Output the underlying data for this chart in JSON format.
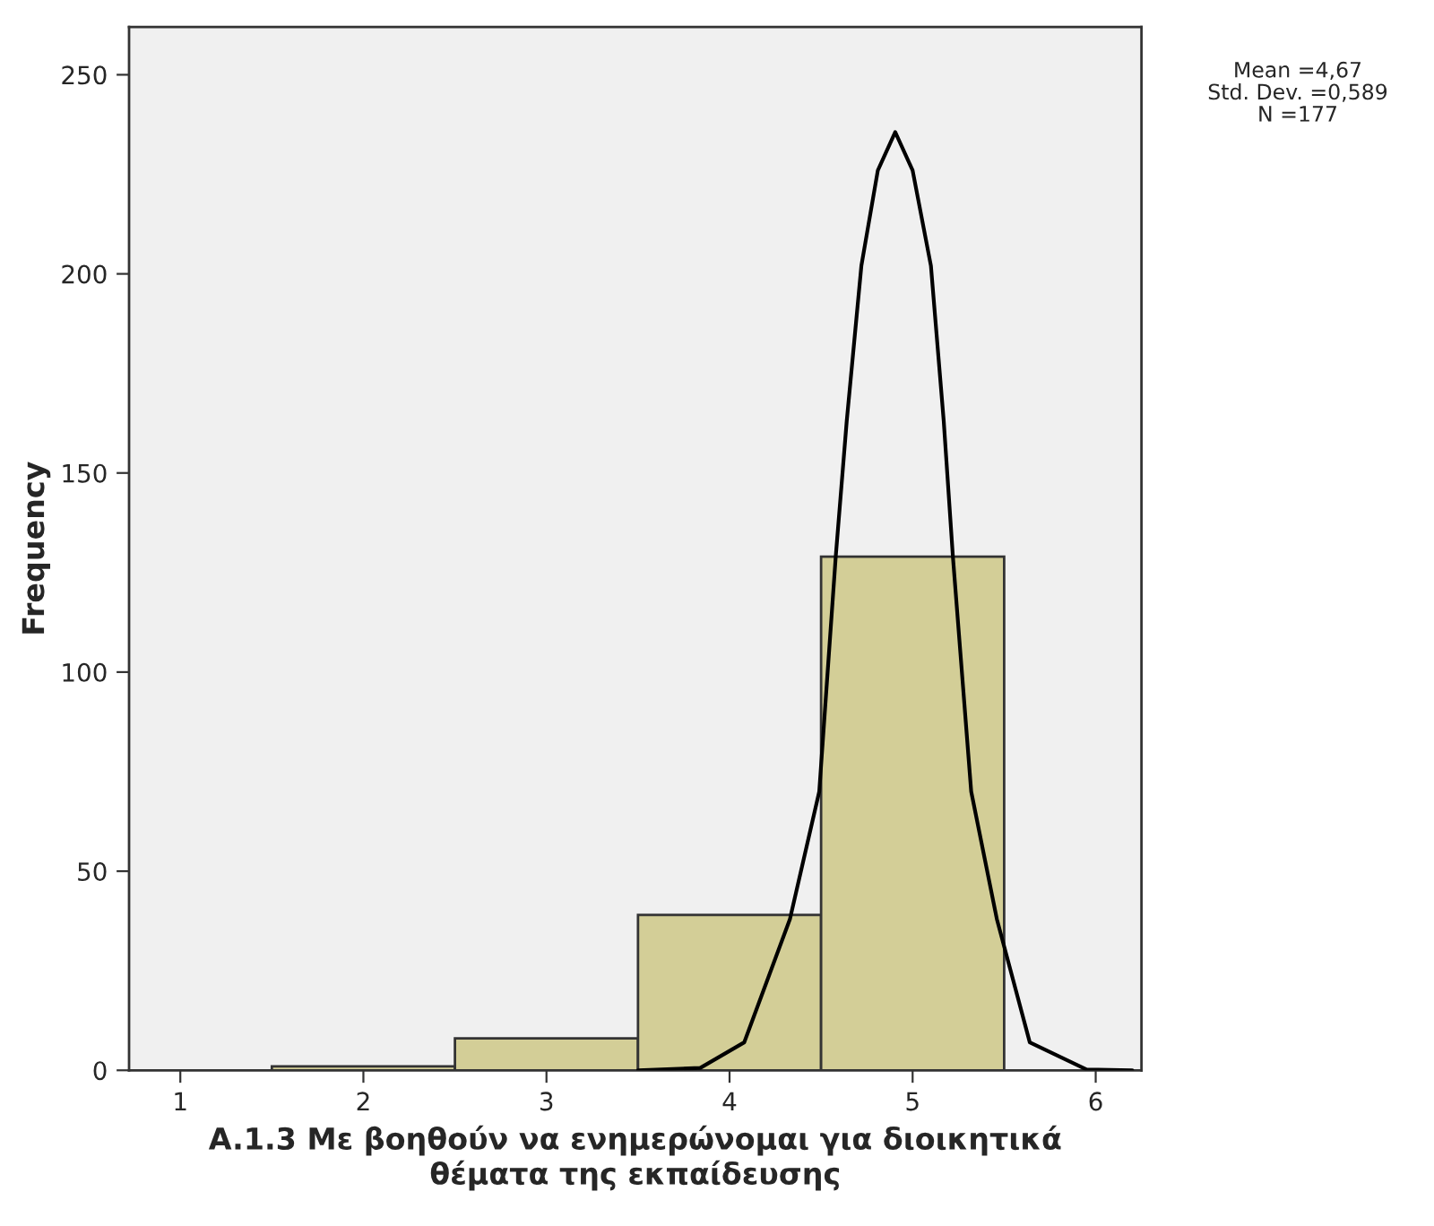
{
  "chart_data": {
    "type": "histogram",
    "xlabel": "A.1.3 Με βοηθούν να ενημερώνομαι για διοικητικά\nθέματα της εκπαίδευσης",
    "ylabel": "Frequency",
    "bins": [
      1.5,
      2.5,
      3.5,
      4.5,
      5.5
    ],
    "values": [
      1,
      8,
      39,
      129
    ],
    "color": "#d3ce97",
    "series": [
      {
        "type": "line",
        "color": "#000000",
        "x": [
          3.5,
          3.84,
          4.08,
          4.33,
          4.49,
          4.58,
          4.64,
          4.72,
          4.81,
          4.905,
          5.0,
          5.1,
          5.17,
          5.22,
          5.32,
          5.46,
          5.64,
          5.95,
          6.2
        ],
        "values": [
          0,
          0.6,
          7,
          38,
          70,
          129,
          163,
          202,
          226,
          235.6,
          226,
          202,
          163,
          129,
          70,
          38,
          7,
          0.2,
          0
        ]
      }
    ],
    "xlim": [
      0.72,
      6.25
    ],
    "ylim": [
      0,
      262
    ],
    "xticks": [
      1,
      2,
      3,
      4,
      5,
      6
    ],
    "yticks": [
      0,
      50,
      100,
      150,
      200,
      250
    ],
    "grid": false,
    "legend": false,
    "annotations": [
      "Mean =4,67",
      "Std. Dev. =0,589",
      "N =177"
    ]
  }
}
